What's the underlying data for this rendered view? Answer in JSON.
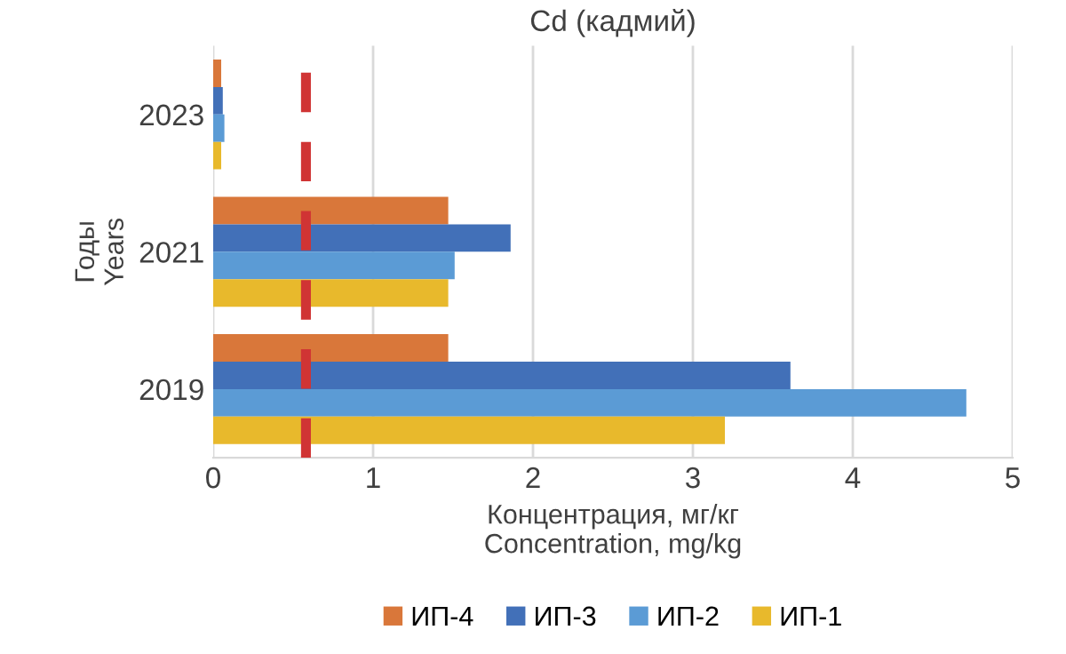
{
  "chart_data": {
    "type": "bar",
    "orientation": "horizontal",
    "title": "Cd (кадмий)",
    "xlabel": "Концентрация, мг/кг\nConcentration, mg/kg",
    "ylabel": "Годы\nYears",
    "categories": [
      "2023",
      "2021",
      "2019"
    ],
    "series": [
      {
        "name": "ИП-4",
        "color": "#d9773a",
        "values": [
          0.05,
          1.47,
          1.47
        ]
      },
      {
        "name": "ИП-3",
        "color": "#4270b8",
        "values": [
          0.06,
          1.86,
          3.61
        ]
      },
      {
        "name": "ИП-2",
        "color": "#5b9bd5",
        "values": [
          0.07,
          1.51,
          4.71
        ]
      },
      {
        "name": "ИП-1",
        "color": "#e8b92c",
        "values": [
          0.05,
          1.47,
          3.2
        ]
      }
    ],
    "xlim": [
      0,
      5
    ],
    "xticks": [
      0,
      1,
      2,
      3,
      4,
      5
    ],
    "grid": "x",
    "legend": "bottom",
    "ref_lines": [
      {
        "axis": "x",
        "value": 0.58,
        "color": "#d03434",
        "line_style": "dashed"
      }
    ]
  }
}
